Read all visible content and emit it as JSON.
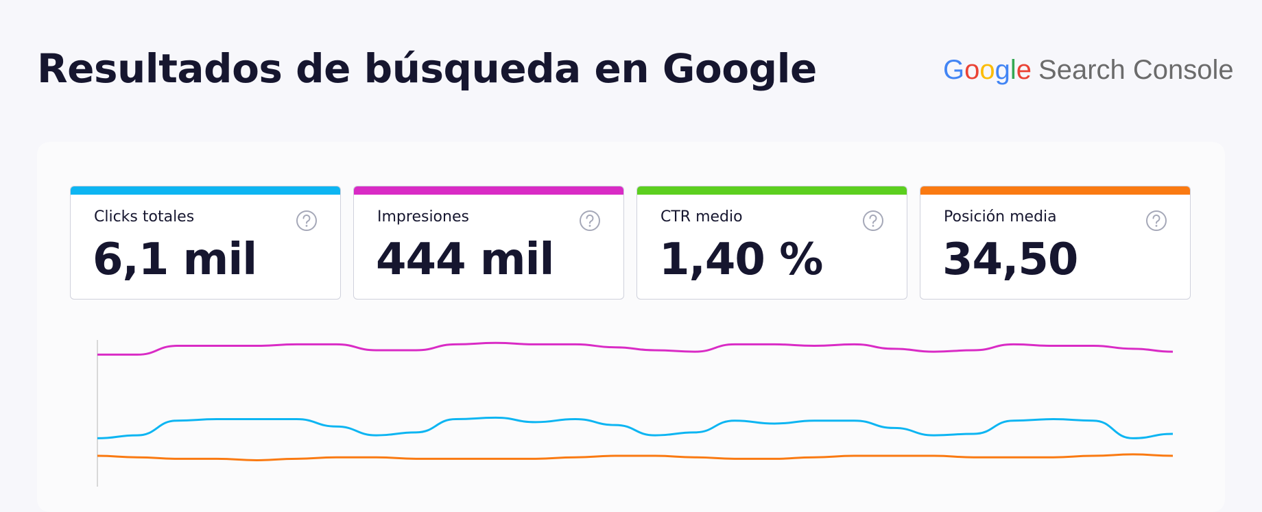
{
  "header": {
    "title": "Resultados de búsqueda en Google",
    "logo_brand": "Google",
    "logo_product": "Search Console"
  },
  "cards": [
    {
      "label": "Clicks totales",
      "value": "6,1 mil",
      "color": "#0db5f2"
    },
    {
      "label": "Impresiones",
      "value": "444 mil",
      "color": "#d92bc5"
    },
    {
      "label": "CTR medio",
      "value": "1,40 %",
      "color": "#5ccf1f"
    },
    {
      "label": "Posición media",
      "value": "34,50",
      "color": "#fa7a12"
    }
  ],
  "chart_data": {
    "type": "line",
    "ylim": [
      0,
      100
    ],
    "series": [
      {
        "color": "#d92bc5",
        "values": [
          90,
          90,
          96,
          96,
          96,
          97,
          97,
          93,
          93,
          97,
          98,
          97,
          97,
          95,
          93,
          92,
          97,
          97,
          96,
          97,
          94,
          92,
          93,
          97,
          96,
          96,
          94,
          92
        ]
      },
      {
        "color": "#0db5f2",
        "values": [
          33,
          35,
          45,
          46,
          46,
          46,
          41,
          35,
          37,
          46,
          47,
          44,
          46,
          42,
          35,
          37,
          45,
          43,
          45,
          45,
          40,
          35,
          36,
          45,
          46,
          45,
          33,
          36
        ]
      },
      {
        "color": "#fa7a12",
        "values": [
          21,
          20,
          19,
          19,
          18,
          19,
          20,
          20,
          19,
          19,
          19,
          19,
          20,
          21,
          21,
          20,
          19,
          19,
          20,
          21,
          21,
          21,
          20,
          20,
          20,
          21,
          22,
          21
        ]
      }
    ]
  }
}
